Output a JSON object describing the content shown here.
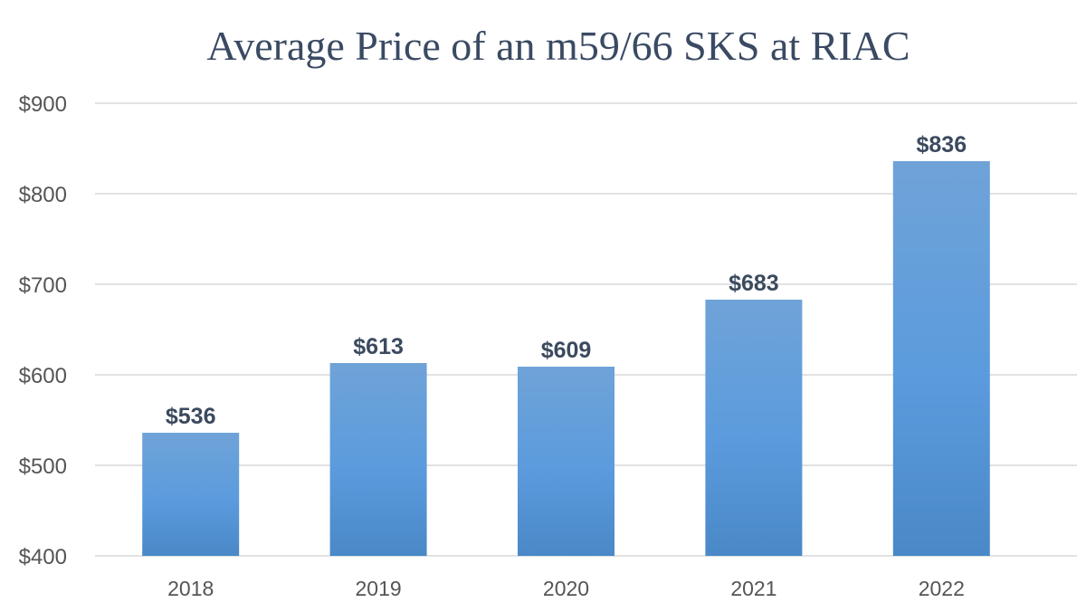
{
  "chart_data": {
    "type": "bar",
    "title": "Average Price of an m59/66 SKS at RIAC",
    "xlabel": "",
    "ylabel": "",
    "categories": [
      "2018",
      "2019",
      "2020",
      "2021",
      "2022"
    ],
    "values": [
      536,
      613,
      609,
      683,
      836
    ],
    "data_labels": [
      "$536",
      "$613",
      "$609",
      "$683",
      "$836"
    ],
    "ylim": [
      400,
      900
    ],
    "y_ticks": [
      400,
      500,
      600,
      700,
      800,
      900
    ],
    "y_tick_labels": [
      "$400",
      "$500",
      "$600",
      "$700",
      "$800",
      "$900"
    ],
    "grid": true,
    "legend": "none",
    "colors": {
      "bar_top": "#6fa3d8",
      "bar_mid": "#5b9bdd",
      "bar_bottom": "#4a88c7",
      "title": "#3a4a63"
    }
  }
}
